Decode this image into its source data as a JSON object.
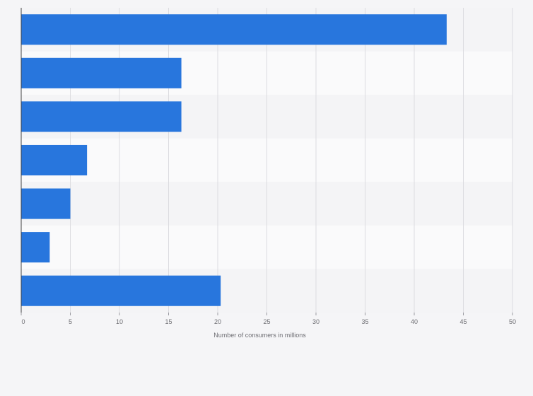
{
  "chart_data": {
    "type": "bar",
    "orientation": "horizontal",
    "categories": [
      "",
      "",
      "",
      "",
      "",
      "",
      ""
    ],
    "values": [
      43.3,
      16.3,
      16.3,
      6.7,
      5.0,
      2.9,
      20.3
    ],
    "xlabel": "Number of consumers in millions",
    "xlim": [
      0,
      50
    ],
    "xticks": [
      0,
      5,
      10,
      15,
      20,
      25,
      30,
      35,
      40,
      45,
      50
    ],
    "grid": true,
    "bar_color": "#2876dd"
  }
}
